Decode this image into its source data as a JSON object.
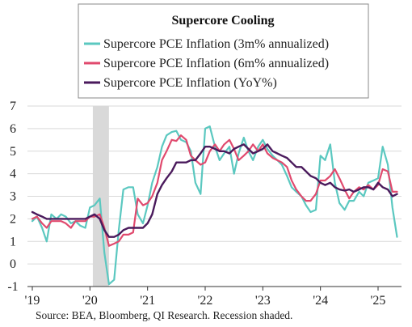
{
  "chart_data": {
    "type": "line",
    "title": "Supercore Cooling",
    "source": "Source: BEA, Bloomberg, QI Research. Recession shaded.",
    "xlabel": "",
    "ylabel": "",
    "ylim": [
      -1,
      7
    ],
    "yticks": [
      "-1",
      "0",
      "1",
      "2",
      "3",
      "4",
      "5",
      "6",
      "7"
    ],
    "xticks": [
      {
        "label": "'19",
        "t": 2019.0
      },
      {
        "label": "'20",
        "t": 2020.0
      },
      {
        "label": "'21",
        "t": 2021.0
      },
      {
        "label": "'22",
        "t": 2022.0
      },
      {
        "label": "'23",
        "t": 2023.0
      },
      {
        "label": "'24",
        "t": 2024.0
      },
      {
        "label": "'25",
        "t": 2025.0
      }
    ],
    "xlim": [
      2019.0,
      2025.8
    ],
    "recession": {
      "start": 2020.05,
      "end": 2020.33,
      "color": "#d9d9d9"
    },
    "legend_position": "top-center",
    "series": [
      {
        "name": "Supercore PCE Inflation (3m% annualized)",
        "color": "#5bc8c0",
        "width": 2.2,
        "points": [
          [
            2019.0,
            1.9
          ],
          [
            2019.08,
            2.1
          ],
          [
            2019.17,
            1.6
          ],
          [
            2019.25,
            1.0
          ],
          [
            2019.33,
            2.2
          ],
          [
            2019.42,
            2.0
          ],
          [
            2019.5,
            2.2
          ],
          [
            2019.58,
            2.1
          ],
          [
            2019.67,
            1.8
          ],
          [
            2019.75,
            1.9
          ],
          [
            2019.83,
            1.7
          ],
          [
            2019.92,
            1.6
          ],
          [
            2020.0,
            2.5
          ],
          [
            2020.08,
            2.6
          ],
          [
            2020.17,
            2.9
          ],
          [
            2020.25,
            0.5
          ],
          [
            2020.33,
            -0.9
          ],
          [
            2020.42,
            -0.7
          ],
          [
            2020.5,
            1.5
          ],
          [
            2020.58,
            3.3
          ],
          [
            2020.67,
            3.4
          ],
          [
            2020.75,
            3.4
          ],
          [
            2020.83,
            2.2
          ],
          [
            2020.92,
            1.8
          ],
          [
            2021.0,
            2.6
          ],
          [
            2021.08,
            3.6
          ],
          [
            2021.17,
            4.3
          ],
          [
            2021.25,
            5.2
          ],
          [
            2021.33,
            5.7
          ],
          [
            2021.42,
            5.85
          ],
          [
            2021.5,
            5.9
          ],
          [
            2021.58,
            5.5
          ],
          [
            2021.67,
            5.4
          ],
          [
            2021.75,
            5.0
          ],
          [
            2021.83,
            3.6
          ],
          [
            2021.92,
            3.1
          ],
          [
            2022.0,
            6.0
          ],
          [
            2022.08,
            6.1
          ],
          [
            2022.17,
            5.2
          ],
          [
            2022.25,
            4.6
          ],
          [
            2022.33,
            4.9
          ],
          [
            2022.42,
            5.2
          ],
          [
            2022.5,
            4.0
          ],
          [
            2022.58,
            4.9
          ],
          [
            2022.67,
            5.6
          ],
          [
            2022.75,
            5.0
          ],
          [
            2022.83,
            4.6
          ],
          [
            2022.92,
            5.2
          ],
          [
            2023.0,
            5.5
          ],
          [
            2023.08,
            5.1
          ],
          [
            2023.17,
            4.8
          ],
          [
            2023.25,
            4.6
          ],
          [
            2023.33,
            4.4
          ],
          [
            2023.42,
            3.9
          ],
          [
            2023.5,
            3.4
          ],
          [
            2023.58,
            3.2
          ],
          [
            2023.67,
            3.0
          ],
          [
            2023.75,
            2.6
          ],
          [
            2023.83,
            2.3
          ],
          [
            2023.92,
            2.4
          ],
          [
            2024.0,
            4.8
          ],
          [
            2024.08,
            4.6
          ],
          [
            2024.17,
            5.3
          ],
          [
            2024.25,
            3.6
          ],
          [
            2024.33,
            2.7
          ],
          [
            2024.42,
            2.4
          ],
          [
            2024.5,
            2.8
          ],
          [
            2024.58,
            2.8
          ],
          [
            2024.67,
            3.2
          ],
          [
            2024.75,
            3.0
          ],
          [
            2024.83,
            3.6
          ],
          [
            2024.92,
            3.7
          ],
          [
            2025.0,
            3.8
          ],
          [
            2025.08,
            5.2
          ],
          [
            2025.17,
            4.4
          ],
          [
            2025.25,
            2.5
          ],
          [
            2025.33,
            1.2
          ]
        ]
      },
      {
        "name": "Supercore PCE Inflation (6m% annualized)",
        "color": "#e04a6e",
        "width": 2.2,
        "points": [
          [
            2019.0,
            2.0
          ],
          [
            2019.08,
            2.1
          ],
          [
            2019.17,
            1.8
          ],
          [
            2019.25,
            1.6
          ],
          [
            2019.33,
            1.9
          ],
          [
            2019.42,
            1.9
          ],
          [
            2019.5,
            1.9
          ],
          [
            2019.58,
            1.8
          ],
          [
            2019.67,
            1.6
          ],
          [
            2019.75,
            1.9
          ],
          [
            2019.83,
            1.9
          ],
          [
            2019.92,
            1.9
          ],
          [
            2020.0,
            2.1
          ],
          [
            2020.08,
            2.1
          ],
          [
            2020.17,
            2.2
          ],
          [
            2020.25,
            1.6
          ],
          [
            2020.33,
            0.8
          ],
          [
            2020.42,
            0.9
          ],
          [
            2020.5,
            1.0
          ],
          [
            2020.58,
            1.3
          ],
          [
            2020.67,
            1.3
          ],
          [
            2020.75,
            1.4
          ],
          [
            2020.83,
            2.9
          ],
          [
            2020.92,
            2.6
          ],
          [
            2021.0,
            2.7
          ],
          [
            2021.08,
            3.0
          ],
          [
            2021.17,
            3.6
          ],
          [
            2021.25,
            4.6
          ],
          [
            2021.33,
            5.0
          ],
          [
            2021.42,
            5.5
          ],
          [
            2021.5,
            5.45
          ],
          [
            2021.58,
            5.7
          ],
          [
            2021.67,
            5.5
          ],
          [
            2021.75,
            4.8
          ],
          [
            2021.83,
            4.6
          ],
          [
            2021.92,
            4.4
          ],
          [
            2022.0,
            4.5
          ],
          [
            2022.08,
            5.0
          ],
          [
            2022.17,
            5.3
          ],
          [
            2022.25,
            5.0
          ],
          [
            2022.33,
            5.3
          ],
          [
            2022.42,
            5.5
          ],
          [
            2022.5,
            5.1
          ],
          [
            2022.58,
            4.6
          ],
          [
            2022.67,
            4.8
          ],
          [
            2022.75,
            5.0
          ],
          [
            2022.83,
            5.3
          ],
          [
            2022.92,
            5.0
          ],
          [
            2023.0,
            5.3
          ],
          [
            2023.08,
            4.9
          ],
          [
            2023.17,
            4.7
          ],
          [
            2023.25,
            4.6
          ],
          [
            2023.33,
            4.5
          ],
          [
            2023.42,
            4.3
          ],
          [
            2023.5,
            3.7
          ],
          [
            2023.58,
            3.3
          ],
          [
            2023.67,
            3.0
          ],
          [
            2023.75,
            2.8
          ],
          [
            2023.83,
            2.8
          ],
          [
            2023.92,
            3.1
          ],
          [
            2024.0,
            3.7
          ],
          [
            2024.08,
            3.7
          ],
          [
            2024.17,
            3.9
          ],
          [
            2024.25,
            4.2
          ],
          [
            2024.33,
            3.8
          ],
          [
            2024.42,
            3.3
          ],
          [
            2024.5,
            2.9
          ],
          [
            2024.58,
            3.2
          ],
          [
            2024.67,
            3.4
          ],
          [
            2024.75,
            3.3
          ],
          [
            2024.83,
            3.5
          ],
          [
            2024.92,
            3.3
          ],
          [
            2025.0,
            3.5
          ],
          [
            2025.08,
            4.2
          ],
          [
            2025.17,
            4.1
          ],
          [
            2025.25,
            3.2
          ],
          [
            2025.33,
            3.2
          ]
        ]
      },
      {
        "name": "Supercore PCE Inflation (YoY%)",
        "color": "#4a1a5c",
        "width": 2.4,
        "points": [
          [
            2019.0,
            2.3
          ],
          [
            2019.08,
            2.2
          ],
          [
            2019.17,
            2.1
          ],
          [
            2019.25,
            2.0
          ],
          [
            2019.33,
            2.0
          ],
          [
            2019.42,
            2.0
          ],
          [
            2019.5,
            2.0
          ],
          [
            2019.58,
            2.0
          ],
          [
            2019.67,
            2.0
          ],
          [
            2019.75,
            2.0
          ],
          [
            2019.83,
            2.0
          ],
          [
            2019.92,
            2.0
          ],
          [
            2020.0,
            2.1
          ],
          [
            2020.08,
            2.2
          ],
          [
            2020.17,
            2.0
          ],
          [
            2020.25,
            1.5
          ],
          [
            2020.33,
            1.2
          ],
          [
            2020.42,
            1.2
          ],
          [
            2020.5,
            1.3
          ],
          [
            2020.58,
            1.5
          ],
          [
            2020.67,
            1.6
          ],
          [
            2020.75,
            1.6
          ],
          [
            2020.83,
            1.6
          ],
          [
            2020.92,
            1.6
          ],
          [
            2021.0,
            1.8
          ],
          [
            2021.08,
            2.2
          ],
          [
            2021.17,
            3.1
          ],
          [
            2021.25,
            3.5
          ],
          [
            2021.33,
            3.8
          ],
          [
            2021.42,
            4.1
          ],
          [
            2021.5,
            4.5
          ],
          [
            2021.58,
            4.5
          ],
          [
            2021.67,
            4.5
          ],
          [
            2021.75,
            4.6
          ],
          [
            2021.83,
            4.6
          ],
          [
            2021.92,
            4.9
          ],
          [
            2022.0,
            5.2
          ],
          [
            2022.08,
            5.2
          ],
          [
            2022.17,
            5.1
          ],
          [
            2022.25,
            5.0
          ],
          [
            2022.33,
            5.0
          ],
          [
            2022.42,
            4.9
          ],
          [
            2022.5,
            5.1
          ],
          [
            2022.58,
            5.2
          ],
          [
            2022.67,
            5.3
          ],
          [
            2022.75,
            5.1
          ],
          [
            2022.83,
            4.9
          ],
          [
            2022.92,
            5.0
          ],
          [
            2023.0,
            5.1
          ],
          [
            2023.08,
            5.3
          ],
          [
            2023.17,
            5.0
          ],
          [
            2023.25,
            4.9
          ],
          [
            2023.33,
            4.8
          ],
          [
            2023.42,
            4.7
          ],
          [
            2023.5,
            4.5
          ],
          [
            2023.58,
            4.3
          ],
          [
            2023.67,
            4.3
          ],
          [
            2023.75,
            4.1
          ],
          [
            2023.83,
            3.9
          ],
          [
            2023.92,
            3.8
          ],
          [
            2024.0,
            3.6
          ],
          [
            2024.08,
            3.5
          ],
          [
            2024.17,
            3.6
          ],
          [
            2024.25,
            3.4
          ],
          [
            2024.33,
            3.3
          ],
          [
            2024.42,
            3.25
          ],
          [
            2024.5,
            3.3
          ],
          [
            2024.58,
            3.2
          ],
          [
            2024.67,
            3.3
          ],
          [
            2024.75,
            3.4
          ],
          [
            2024.83,
            3.4
          ],
          [
            2024.92,
            3.3
          ],
          [
            2025.0,
            3.6
          ],
          [
            2025.08,
            3.4
          ],
          [
            2025.17,
            3.3
          ],
          [
            2025.25,
            3.0
          ],
          [
            2025.33,
            3.1
          ]
        ]
      }
    ]
  }
}
